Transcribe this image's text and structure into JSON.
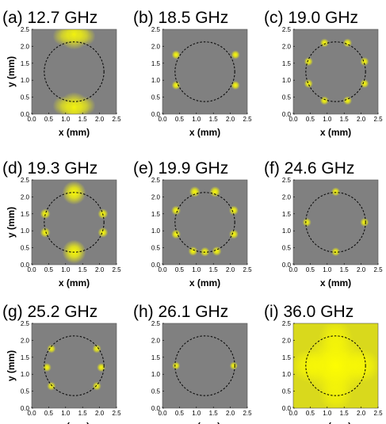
{
  "chart_data": {
    "type": "heatmap",
    "x_label": "x (mm)",
    "y_label": "y (mm)",
    "x_ticks": [
      "0.0",
      "0.5",
      "1.0",
      "1.5",
      "2.0",
      "2.5"
    ],
    "y_ticks": [
      "0.0",
      "0.5",
      "1.0",
      "1.5",
      "2.0",
      "2.5"
    ],
    "xlim": [
      0,
      2.5
    ],
    "ylim": [
      0,
      2.5
    ],
    "circle": {
      "cx": 1.25,
      "cy": 1.25,
      "r": 0.88,
      "style": "dashed"
    },
    "colors": {
      "background": "#808080",
      "hot": "#ffff00",
      "circle": "#000000"
    },
    "panels": [
      {
        "label": "(a) 12.7 GHz",
        "hotspots": [
          [
            1.25,
            2.35,
            0.45,
            0.9
          ],
          [
            1.25,
            0.2,
            0.45,
            0.9
          ],
          [
            0.9,
            2.3,
            0.28,
            0.5
          ],
          [
            1.6,
            2.3,
            0.28,
            0.5
          ],
          [
            0.9,
            0.25,
            0.28,
            0.5
          ],
          [
            1.6,
            0.25,
            0.28,
            0.5
          ]
        ]
      },
      {
        "label": "(b) 18.5 GHz",
        "hotspots": [
          [
            0.4,
            1.75,
            0.13,
            0.95
          ],
          [
            0.4,
            0.85,
            0.13,
            0.95
          ],
          [
            2.15,
            1.75,
            0.13,
            0.95
          ],
          [
            2.15,
            0.85,
            0.13,
            0.95
          ]
        ]
      },
      {
        "label": "(c) 19.0 GHz",
        "hotspots": [
          [
            0.92,
            2.1,
            0.13,
            0.95
          ],
          [
            1.6,
            2.1,
            0.13,
            0.95
          ],
          [
            0.45,
            1.55,
            0.13,
            0.95
          ],
          [
            2.1,
            1.55,
            0.13,
            0.95
          ],
          [
            0.45,
            0.9,
            0.13,
            0.95
          ],
          [
            2.1,
            0.9,
            0.13,
            0.95
          ],
          [
            0.92,
            0.4,
            0.13,
            0.95
          ],
          [
            1.6,
            0.4,
            0.13,
            0.95
          ]
        ]
      },
      {
        "label": "(d) 19.3 GHz",
        "hotspots": [
          [
            1.25,
            2.12,
            0.35,
            0.95
          ],
          [
            0.4,
            1.5,
            0.15,
            0.95
          ],
          [
            0.4,
            0.95,
            0.15,
            0.95
          ],
          [
            2.1,
            1.5,
            0.15,
            0.95
          ],
          [
            2.1,
            0.95,
            0.15,
            0.95
          ],
          [
            1.25,
            0.38,
            0.35,
            0.95
          ]
        ]
      },
      {
        "label": "(e) 19.9 GHz",
        "hotspots": [
          [
            0.95,
            2.15,
            0.16,
            0.95
          ],
          [
            1.55,
            2.15,
            0.16,
            0.95
          ],
          [
            0.4,
            1.6,
            0.14,
            0.95
          ],
          [
            2.1,
            1.6,
            0.14,
            0.95
          ],
          [
            0.4,
            0.9,
            0.14,
            0.95
          ],
          [
            2.1,
            0.9,
            0.14,
            0.95
          ],
          [
            0.9,
            0.4,
            0.14,
            0.95
          ],
          [
            1.25,
            0.38,
            0.14,
            0.95
          ],
          [
            1.6,
            0.4,
            0.14,
            0.95
          ]
        ]
      },
      {
        "label": "(f) 24.6 GHz",
        "hotspots": [
          [
            1.25,
            2.15,
            0.13,
            0.95
          ],
          [
            0.4,
            1.25,
            0.13,
            0.95
          ],
          [
            2.1,
            1.25,
            0.13,
            0.95
          ],
          [
            1.25,
            0.38,
            0.13,
            0.95
          ]
        ]
      },
      {
        "label": "(g) 25.2 GHz",
        "hotspots": [
          [
            0.58,
            1.75,
            0.13,
            0.9
          ],
          [
            0.45,
            1.2,
            0.13,
            0.95
          ],
          [
            0.58,
            0.65,
            0.13,
            0.9
          ],
          [
            1.92,
            1.75,
            0.13,
            0.9
          ],
          [
            2.05,
            1.2,
            0.13,
            0.95
          ],
          [
            1.92,
            0.65,
            0.13,
            0.9
          ]
        ]
      },
      {
        "label": "(h) 26.1 GHz",
        "hotspots": [
          [
            0.4,
            1.25,
            0.12,
            0.95
          ],
          [
            2.1,
            1.25,
            0.12,
            0.95
          ]
        ]
      },
      {
        "label": "(i) 36.0 GHz",
        "fill": "#d9d91c",
        "hotspots": [
          [
            1.25,
            1.25,
            0.95,
            0.95
          ],
          [
            0.45,
            1.25,
            0.5,
            0.7
          ],
          [
            2.05,
            1.25,
            0.5,
            0.7
          ],
          [
            1.25,
            2.1,
            0.5,
            0.6
          ],
          [
            1.25,
            0.4,
            0.5,
            0.6
          ]
        ]
      }
    ]
  }
}
